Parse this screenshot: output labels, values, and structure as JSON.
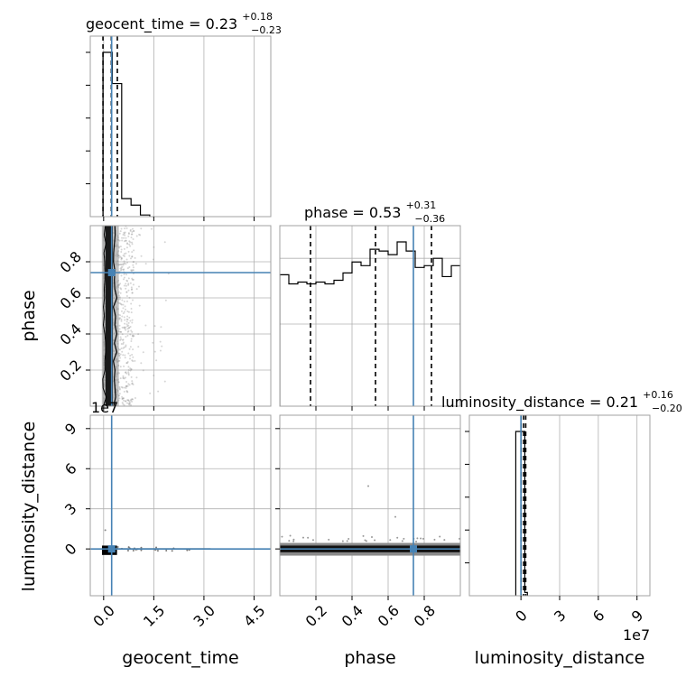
{
  "figure": {
    "offset_label": "1e7"
  },
  "chart_data": {
    "type": "corner",
    "parameters": [
      "geocent_time",
      "phase",
      "luminosity_distance"
    ],
    "truths": {
      "geocent_time": 0.24,
      "phase": 0.74,
      "luminosity_distance": 0
    },
    "marginals": [
      {
        "parameter": "geocent_time",
        "title_main": "geocent_time = 0.23",
        "title_plus": "+0.18",
        "title_minus": "−0.23",
        "quantiles": [
          -0.02,
          0.23,
          0.41
        ],
        "xlim": [
          -0.4,
          5.0
        ],
        "xticks": [
          0.0,
          1.5,
          3.0,
          4.5
        ],
        "xticklabels": [
          "0.0",
          "1.5",
          "3.0",
          "4.5"
        ],
        "bin_edges": [
          -0.02,
          0.26,
          0.54,
          0.82,
          1.1,
          1.38
        ],
        "counts": [
          1.0,
          0.81,
          0.11,
          0.07,
          0.01
        ]
      },
      {
        "parameter": "phase",
        "title_main": "phase = 0.53",
        "title_plus": "+0.31",
        "title_minus": "−0.36",
        "quantiles": [
          0.17,
          0.53,
          0.84
        ],
        "xlim": [
          0.0,
          1.0
        ],
        "xticks": [
          0.2,
          0.4,
          0.6,
          0.8
        ],
        "xticklabels": [
          "0.2",
          "0.4",
          "0.6",
          "0.8"
        ],
        "bin_edges": [
          0.0,
          0.05,
          0.1,
          0.15,
          0.2,
          0.25,
          0.3,
          0.35,
          0.4,
          0.45,
          0.5,
          0.55,
          0.6,
          0.65,
          0.7,
          0.75,
          0.8,
          0.85,
          0.9,
          0.95,
          1.0
        ],
        "counts": [
          0.72,
          0.67,
          0.68,
          0.67,
          0.68,
          0.67,
          0.69,
          0.73,
          0.79,
          0.77,
          0.86,
          0.85,
          0.83,
          0.9,
          0.85,
          0.76,
          0.77,
          0.81,
          0.71,
          0.77
        ]
      },
      {
        "parameter": "luminosity_distance",
        "title_main": "luminosity_distance = 0.21",
        "title_plus": "+0.16",
        "title_minus": "−0.20",
        "quantiles": [
          0.01,
          0.21,
          0.37
        ],
        "xlim": [
          -4,
          10
        ],
        "xticks": [
          0,
          3,
          6,
          9
        ],
        "xticklabels": [
          "0",
          "3",
          "6",
          "9"
        ],
        "bin_edges": [
          -0.4,
          0.3,
          0.5
        ],
        "counts": [
          1.0,
          0.02
        ]
      }
    ],
    "joint": [
      {
        "x_parameter": "geocent_time",
        "y_parameter": "phase",
        "xlim": [
          -0.4,
          5.0
        ],
        "ylim": [
          0.0,
          1.0
        ],
        "yticks": [
          0.2,
          0.4,
          0.6,
          0.8
        ],
        "yticklabels": [
          "0.2",
          "0.4",
          "0.6",
          "0.8"
        ],
        "core_x_range": [
          0.0,
          0.4
        ],
        "scatter_x_max": 2.0
      },
      {
        "x_parameter": "geocent_time",
        "y_parameter": "luminosity_distance",
        "xlim": [
          -0.4,
          5.0
        ],
        "ylim": [
          -3.5,
          10
        ],
        "yticks": [
          0,
          3,
          6,
          9
        ],
        "yticklabels": [
          "0",
          "3",
          "6",
          "9"
        ],
        "core_x_range": [
          -0.05,
          0.4
        ]
      },
      {
        "x_parameter": "phase",
        "y_parameter": "luminosity_distance",
        "xlim": [
          0.0,
          1.0
        ],
        "ylim": [
          -3.5,
          10
        ],
        "outliers": [
          [
            0.49,
            4.7
          ],
          [
            0.64,
            2.4
          ]
        ]
      }
    ],
    "axis_labels": {
      "x": [
        "geocent_time",
        "phase",
        "luminosity_distance"
      ],
      "y": [
        "phase",
        "luminosity_distance"
      ]
    },
    "colors": {
      "truth": "#4682b4",
      "hist": "#000000",
      "grid": "#b0b0b0"
    },
    "grid": true
  }
}
